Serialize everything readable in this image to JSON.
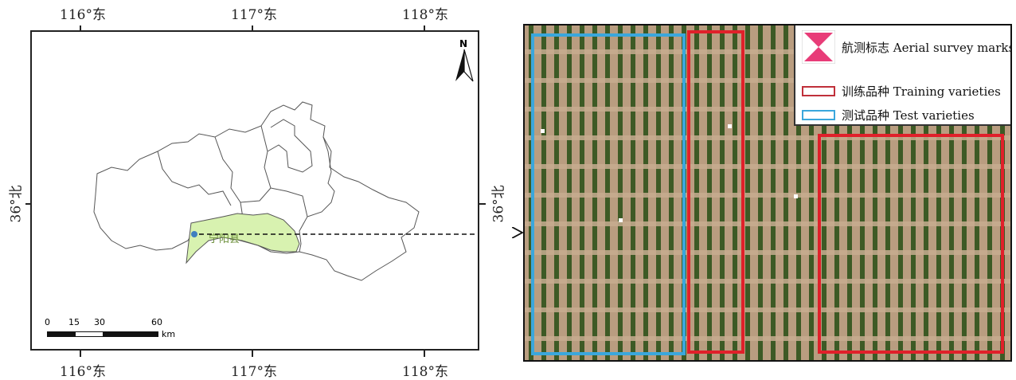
{
  "left_map": {
    "top_lon_labels": [
      "116°东",
      "117°东",
      "118°东"
    ],
    "bottom_lon_labels": [
      "116°东",
      "117°东",
      "118°东"
    ],
    "lat_label_left": "36°北",
    "lat_label_right": "36°北",
    "north_arrow_label": "N",
    "county_label": "宁阳县",
    "county_fill_color": "#d8f2b0",
    "county_point_color": "#3f7fbf",
    "scale_bar": {
      "ticks": [
        "0",
        "15",
        "30",
        "60"
      ],
      "unit": "km"
    }
  },
  "photo": {
    "field_color": "#b79b7e",
    "crop_color": "#3d5a25",
    "test_box_color": "#3aa7dc",
    "training_box_color": "#e0202a"
  },
  "legend": {
    "items": [
      {
        "icon": "aerial-survey-mark-icon",
        "label": "航测标志 Aerial survey marks",
        "color": "#e83c78"
      },
      {
        "icon": "red-box-icon",
        "label": "训练品种 Training varieties",
        "color": "#c0303a"
      },
      {
        "icon": "blue-box-icon",
        "label": "测试品种 Test varieties",
        "color": "#3aa7dc"
      }
    ]
  }
}
